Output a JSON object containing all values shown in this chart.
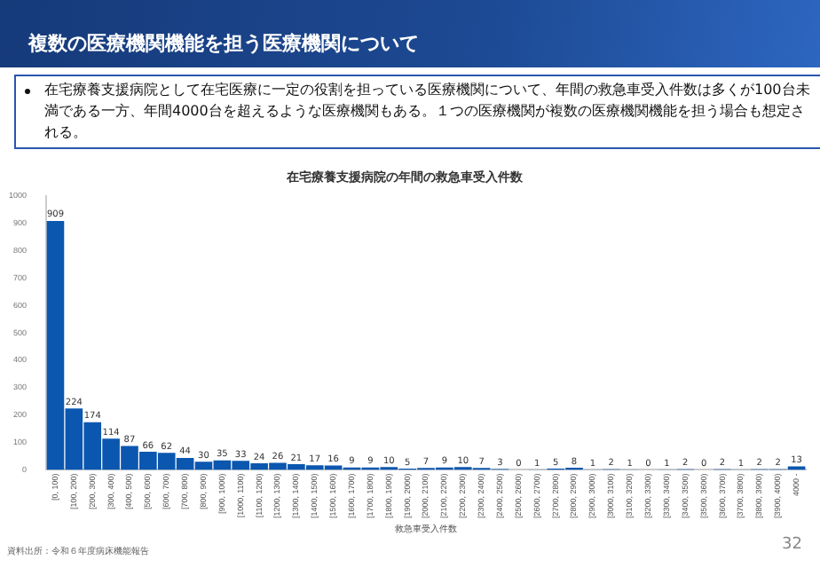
{
  "chart_data": {
    "type": "bar",
    "title": "在宅療養支援病院の年間の救急車受入件数",
    "xlabel": "救急車受入件数",
    "annotations": [
      "複数の医療機関機能を担う医療機関について",
      "在宅療養支援病院として在宅医療に一定の役割を担っている医療機関について、年間の救急車受入件数は多くが100台未満である一方、年間4000台を超えるような医療機関もある。１つの医療機関が複数の医療機関機能を担う場合も想定される。",
      "資料出所：令和６年度病床機能報告",
      "32"
    ],
    "categories": [
      "[0, 100)",
      "[100, 200)",
      "[200, 300)",
      "[300, 400)",
      "[400, 500)",
      "[500, 600)",
      "[600, 700)",
      "[700, 800)",
      "[800, 900)",
      "[900, 1000)",
      "[1000, 1100)",
      "[1100, 1200)",
      "[1200, 1300)",
      "[1300, 1400)",
      "[1400, 1500)",
      "[1500, 1600)",
      "[1600, 1700)",
      "[1700, 1800)",
      "[1800, 1900)",
      "[1900, 2000)",
      "[2000, 2100)",
      "[2100, 2200)",
      "[2200, 2300)",
      "[2300, 2400)",
      "[2400, 2500)",
      "[2500, 2600)",
      "[2600, 2700)",
      "[2700, 2800)",
      "[2800, 2900)",
      "[2900, 3000)",
      "[3000, 3100)",
      "[3100, 3200)",
      "[3200, 3300)",
      "[3300, 3400)",
      "[3400, 3500)",
      "[3500, 3600)",
      "[3600, 3700)",
      "[3700, 3800)",
      "[3800, 3900)",
      "[3900, 4000)",
      "4000 -"
    ],
    "values": [
      909,
      224,
      174,
      114,
      87,
      66,
      62,
      44,
      30,
      35,
      33,
      24,
      26,
      21,
      17,
      16,
      9,
      9,
      10,
      5,
      7,
      9,
      10,
      7,
      3,
      0,
      1,
      5,
      8,
      1,
      2,
      1,
      0,
      1,
      2,
      0,
      2,
      1,
      2,
      2,
      13
    ],
    "color": "#0b57b0",
    "data_labels": true,
    "grid": false,
    "legend": false,
    "ylim": [
      0,
      1000
    ],
    "yticks": [
      0,
      100,
      200,
      300,
      400,
      500,
      600,
      700,
      800,
      900,
      1000
    ]
  }
}
